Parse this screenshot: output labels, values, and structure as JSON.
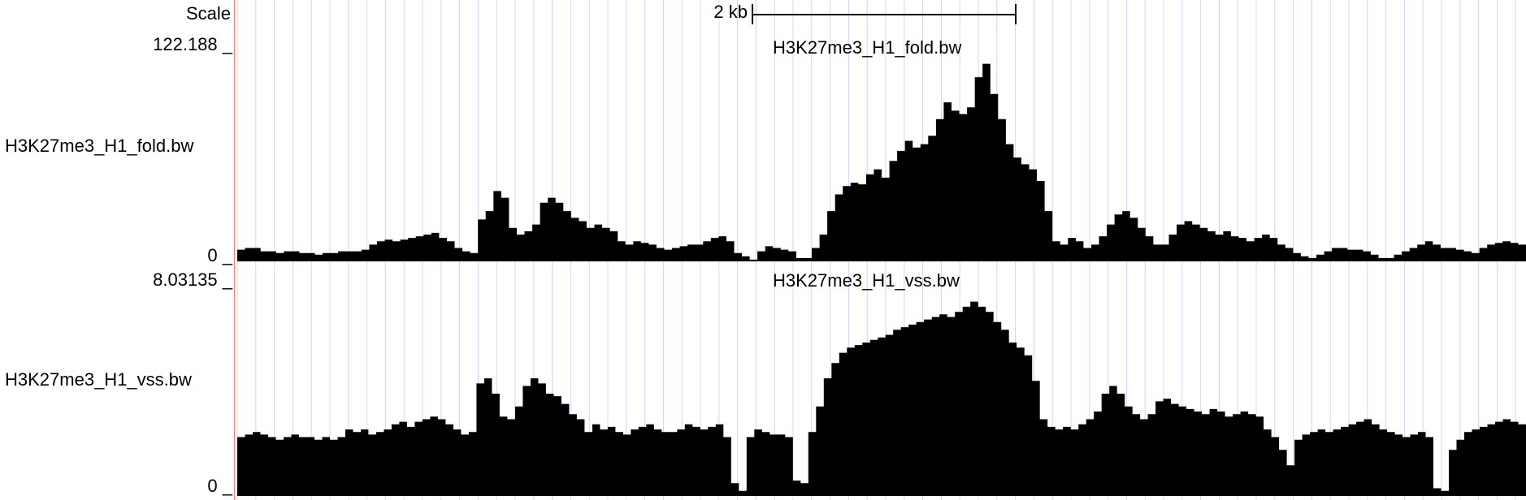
{
  "ruler": {
    "label": "Scale",
    "scale_bar_text": "2 kb"
  },
  "tracks": [
    {
      "name": "H3K27me3_H1_fold.bw",
      "side_label": "H3K27me3_H1_fold.bw",
      "center_label": "H3K27me3_H1_fold.bw",
      "max_label": "122.188 _",
      "min_label": "0 _",
      "color": "#000000",
      "max_value": 122.188,
      "signal": [
        7,
        8,
        8,
        6,
        6,
        5,
        6,
        6,
        5,
        5,
        4,
        5,
        5,
        6,
        6,
        6,
        7,
        10,
        12,
        13,
        12,
        13,
        14,
        15,
        16,
        17,
        14,
        12,
        8,
        6,
        5,
        25,
        30,
        42,
        38,
        20,
        16,
        18,
        22,
        35,
        38,
        35,
        30,
        26,
        24,
        20,
        22,
        20,
        18,
        12,
        10,
        12,
        11,
        10,
        8,
        7,
        8,
        9,
        10,
        10,
        12,
        14,
        15,
        12,
        5,
        3,
        1,
        6,
        9,
        8,
        7,
        6,
        2,
        2,
        8,
        16,
        30,
        40,
        45,
        47,
        46,
        52,
        55,
        50,
        60,
        66,
        72,
        68,
        70,
        75,
        85,
        95,
        90,
        88,
        92,
        110,
        118,
        100,
        85,
        70,
        62,
        58,
        55,
        48,
        30,
        12,
        10,
        14,
        12,
        8,
        10,
        15,
        22,
        28,
        30,
        26,
        20,
        15,
        10,
        10,
        16,
        22,
        24,
        22,
        20,
        18,
        16,
        18,
        15,
        14,
        12,
        14,
        16,
        14,
        10,
        8,
        5,
        3,
        2,
        4,
        6,
        8,
        8,
        7,
        7,
        6,
        4,
        2,
        2,
        4,
        6,
        8,
        10,
        12,
        10,
        8,
        8,
        7,
        6,
        5,
        8,
        10,
        11,
        12,
        11,
        10
      ],
      "scale_max": 122.188
    },
    {
      "name": "H3K27me3_H1_vss.bw",
      "side_label": "H3K27me3_H1_vss.bw",
      "center_label": "H3K27me3_H1_vss.bw",
      "max_label": "8.03135 _",
      "min_label": "0 _",
      "color": "#000000",
      "max_value": 8.03135,
      "signal": [
        2.3,
        2.4,
        2.5,
        2.4,
        2.3,
        2.2,
        2.3,
        2.4,
        2.3,
        2.3,
        2.2,
        2.3,
        2.2,
        2.3,
        2.6,
        2.5,
        2.6,
        2.4,
        2.5,
        2.6,
        2.8,
        2.9,
        2.7,
        2.9,
        3.0,
        3.1,
        3.0,
        2.8,
        2.6,
        2.4,
        2.5,
        4.4,
        4.6,
        4.0,
        3.1,
        3.0,
        3.5,
        4.3,
        4.6,
        4.4,
        4.0,
        3.9,
        3.6,
        3.2,
        3.0,
        2.5,
        2.8,
        2.6,
        2.7,
        2.5,
        2.4,
        2.6,
        2.7,
        2.8,
        2.6,
        2.5,
        2.5,
        2.6,
        2.8,
        2.7,
        2.6,
        2.7,
        2.8,
        2.3,
        0.5,
        0.2,
        2.3,
        2.6,
        2.5,
        2.4,
        2.4,
        2.3,
        0.6,
        0.5,
        2.5,
        3.5,
        4.6,
        5.2,
        5.6,
        5.8,
        5.9,
        6.0,
        6.1,
        6.2,
        6.3,
        6.5,
        6.6,
        6.7,
        6.8,
        6.9,
        7.0,
        7.1,
        7.0,
        7.2,
        7.4,
        7.6,
        7.4,
        7.2,
        6.8,
        6.5,
        6.0,
        5.8,
        5.5,
        4.5,
        3.0,
        2.7,
        2.6,
        2.7,
        2.6,
        2.8,
        3.0,
        3.3,
        4.0,
        4.3,
        4.0,
        3.5,
        3.2,
        3.0,
        3.2,
        3.7,
        3.8,
        3.6,
        3.5,
        3.4,
        3.3,
        3.2,
        3.4,
        3.3,
        3.1,
        3.2,
        3.3,
        3.2,
        3.1,
        2.6,
        2.3,
        1.8,
        1.2,
        2.2,
        2.4,
        2.5,
        2.6,
        2.5,
        2.6,
        2.7,
        2.8,
        2.9,
        3.0,
        2.8,
        2.6,
        2.5,
        2.4,
        2.3,
        2.4,
        2.5,
        2.3,
        0.3,
        0.2,
        1.8,
        2.2,
        2.5,
        2.6,
        2.7,
        2.8,
        2.9,
        3.0,
        2.9,
        2.8
      ],
      "scale_max": 8.03135
    }
  ]
}
